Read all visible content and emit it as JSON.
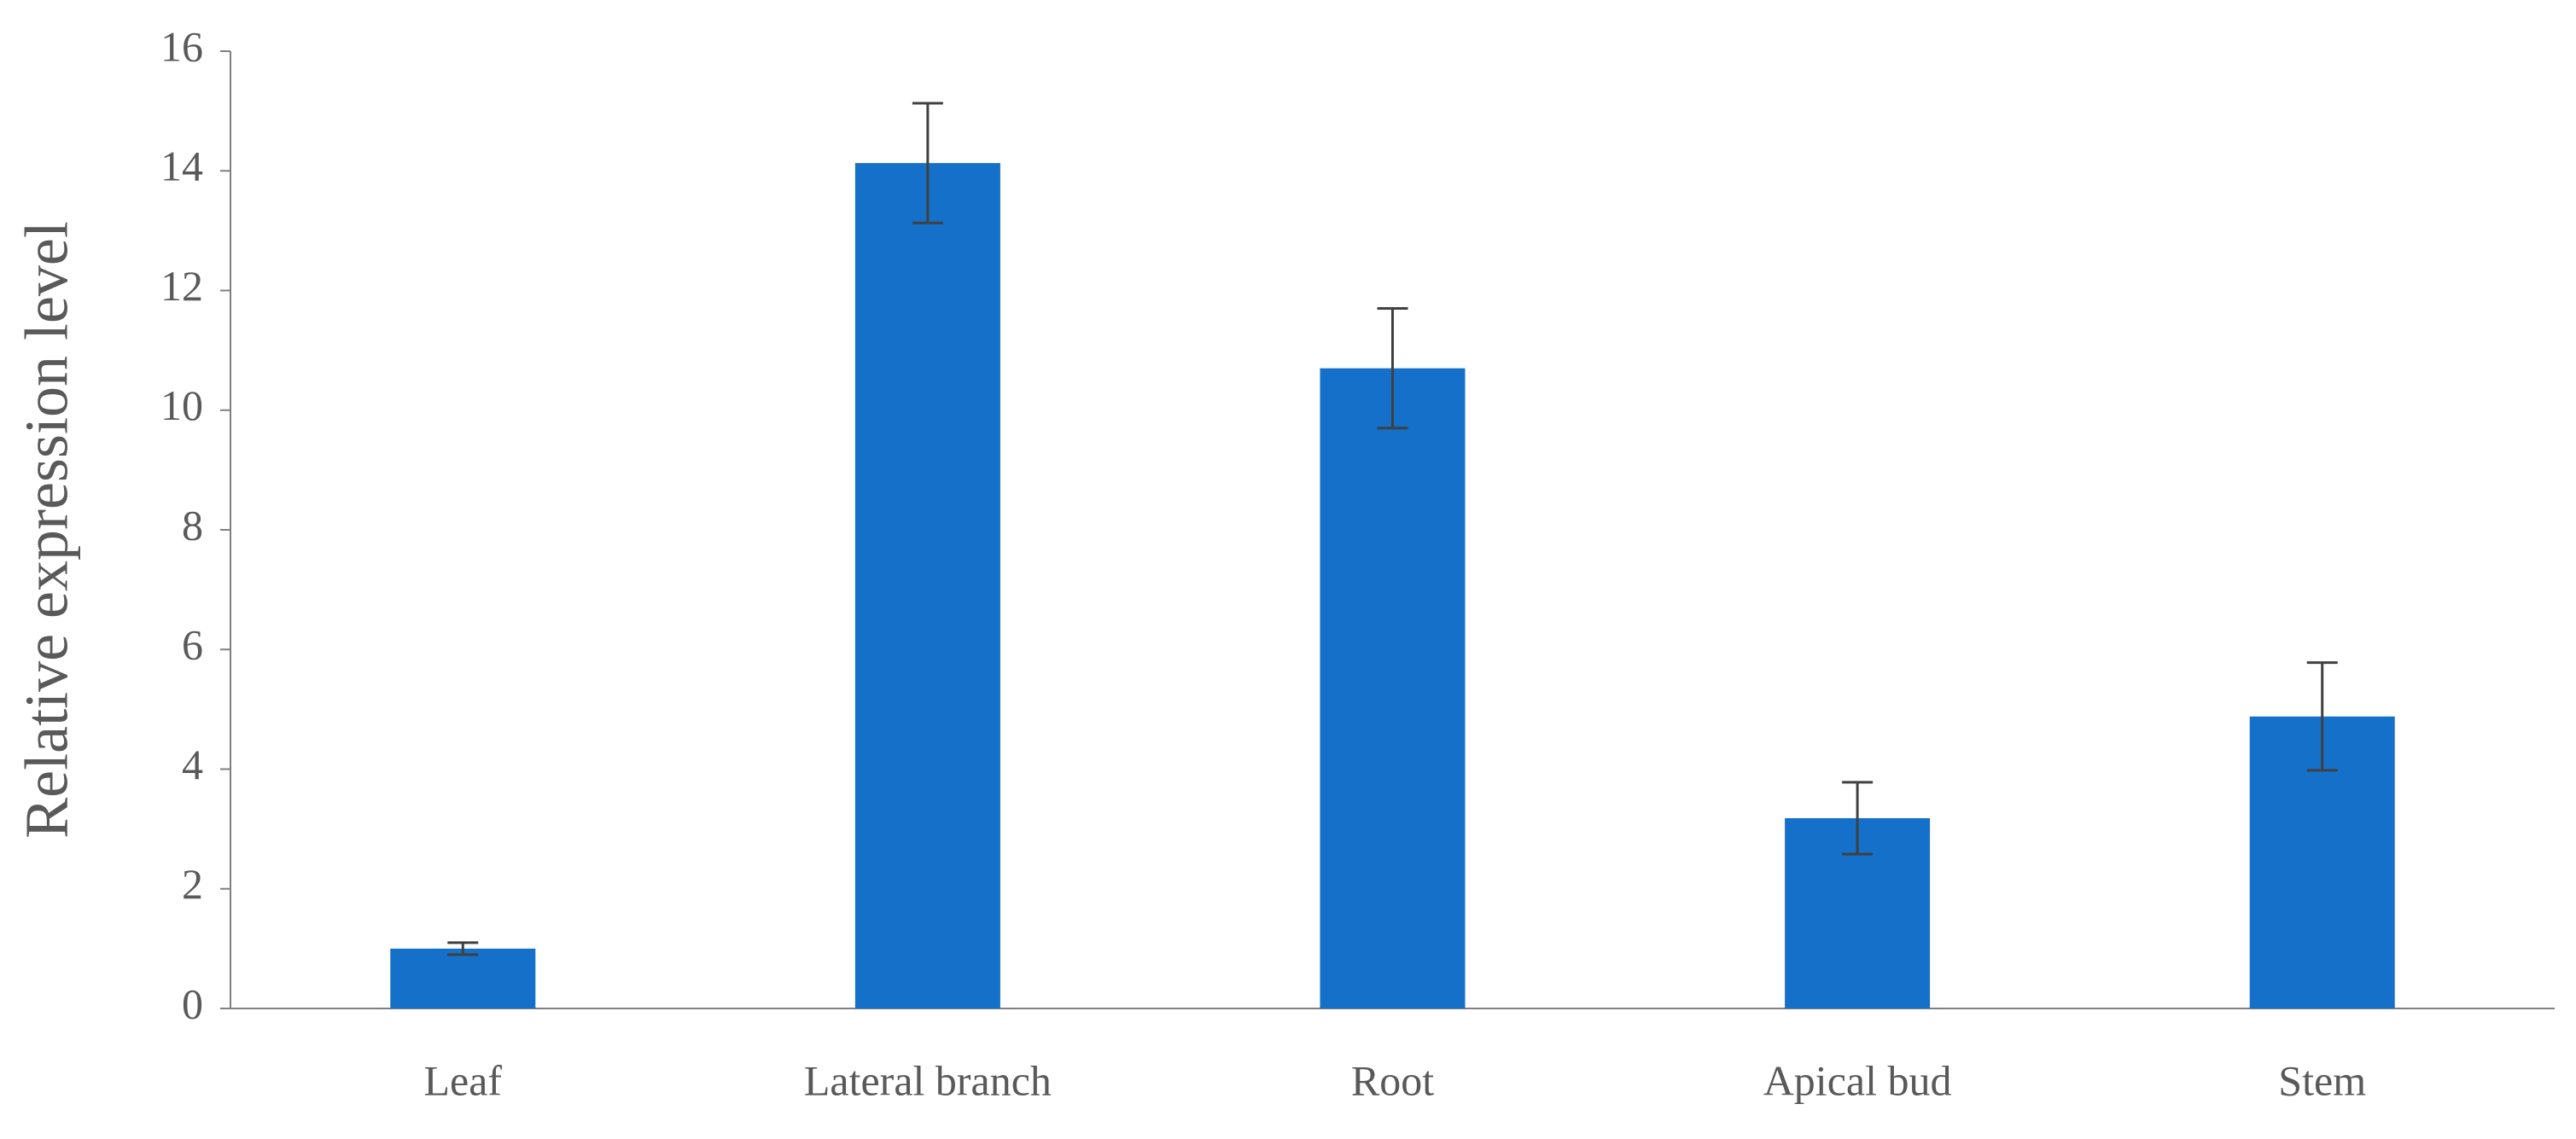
{
  "chart_data": {
    "type": "bar",
    "y_label": "Relative expression level",
    "categories": [
      "Leaf",
      "Lateral branch",
      "Root",
      "Apical bud",
      "Stem"
    ],
    "values": [
      1.0,
      14.13,
      10.7,
      3.18,
      4.88
    ],
    "errors": [
      0.1,
      1.0,
      1.0,
      0.6,
      0.9
    ],
    "color": "#1570c9",
    "ylim": [
      0,
      16
    ],
    "yticks": [
      0,
      2,
      4,
      6,
      8,
      10,
      12,
      14,
      16
    ],
    "grid": false
  }
}
